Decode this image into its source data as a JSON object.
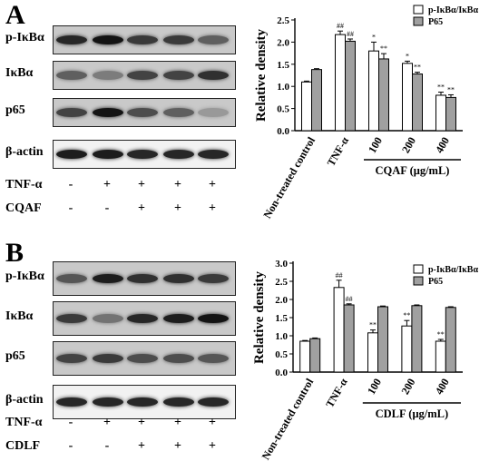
{
  "panels": [
    {
      "letter": "A",
      "blot_labels": [
        "p-IκBα",
        "IκBα",
        "p65",
        "β-actin"
      ],
      "treatments": [
        {
          "label": "TNF-α",
          "signs": [
            "-",
            "+",
            "+",
            "+",
            "+"
          ]
        },
        {
          "label": "CQAF",
          "signs": [
            "-",
            "-",
            "+",
            "+",
            "+"
          ]
        }
      ],
      "band_intensity": [
        [
          0.85,
          0.95,
          0.75,
          0.75,
          0.55
        ],
        [
          0.55,
          0.4,
          0.7,
          0.7,
          0.8
        ],
        [
          0.7,
          0.95,
          0.65,
          0.55,
          0.25
        ],
        [
          0.9,
          0.9,
          0.85,
          0.85,
          0.85
        ]
      ]
    },
    {
      "letter": "B",
      "blot_labels": [
        "p-IκBα",
        "IκBα",
        "p65",
        "β-actin"
      ],
      "treatments": [
        {
          "label": "TNF-α",
          "signs": [
            "-",
            "+",
            "+",
            "+",
            "+"
          ]
        },
        {
          "label": "CDLF",
          "signs": [
            "-",
            "-",
            "+",
            "+",
            "+"
          ]
        }
      ],
      "band_intensity": [
        [
          0.6,
          0.9,
          0.8,
          0.8,
          0.75
        ],
        [
          0.75,
          0.45,
          0.85,
          0.9,
          0.95
        ],
        [
          0.7,
          0.75,
          0.65,
          0.65,
          0.6
        ],
        [
          0.85,
          0.85,
          0.85,
          0.85,
          0.85
        ]
      ]
    }
  ],
  "chart_data": [
    {
      "type": "bar",
      "ylabel": "Relative density",
      "ylim": [
        0,
        2.5
      ],
      "yticks": [
        "0.0",
        "0.5",
        "1.0",
        "1.5",
        "2.0",
        "2.5"
      ],
      "categories": [
        "Non-treated control",
        "TNF-α",
        "100",
        "200",
        "400"
      ],
      "group_label": "CQAF (μg/mL)",
      "series": [
        {
          "name": "p-IκBα/IκBα",
          "color": "#ffffff",
          "values": [
            1.1,
            2.17,
            1.8,
            1.52,
            0.8
          ],
          "errors": [
            0.02,
            0.08,
            0.2,
            0.05,
            0.07
          ],
          "annotations": [
            "",
            "##",
            "*",
            "*",
            "**"
          ]
        },
        {
          "name": "P65",
          "color": "#a0a0a0",
          "values": [
            1.38,
            2.02,
            1.62,
            1.28,
            0.75
          ],
          "errors": [
            0.02,
            0.05,
            0.12,
            0.04,
            0.06
          ],
          "annotations": [
            "",
            "##",
            "**",
            "**",
            "**"
          ]
        }
      ],
      "legend_position": "top-right",
      "grid": false
    },
    {
      "type": "bar",
      "ylabel": "Relative density",
      "ylim": [
        0,
        3.0
      ],
      "yticks": [
        "0.0",
        "0.5",
        "1.0",
        "1.5",
        "2.0",
        "2.5",
        "3.0"
      ],
      "categories": [
        "Non-treated control",
        "TNF-α",
        "100",
        "200",
        "400"
      ],
      "group_label": "CDLF (μg/mL)",
      "series": [
        {
          "name": "p-IκBα/IκBα",
          "color": "#ffffff",
          "values": [
            0.85,
            2.33,
            1.08,
            1.27,
            0.85
          ],
          "errors": [
            0.02,
            0.2,
            0.08,
            0.15,
            0.05
          ],
          "annotations": [
            "",
            "##",
            "**",
            "**",
            "**"
          ]
        },
        {
          "name": "P65",
          "color": "#a0a0a0",
          "values": [
            0.92,
            1.85,
            1.8,
            1.83,
            1.78
          ],
          "errors": [
            0.02,
            0.03,
            0.02,
            0.02,
            0.02
          ],
          "annotations": [
            "",
            "##",
            "",
            "",
            ""
          ]
        }
      ],
      "legend_position": "top-right",
      "grid": false
    }
  ]
}
